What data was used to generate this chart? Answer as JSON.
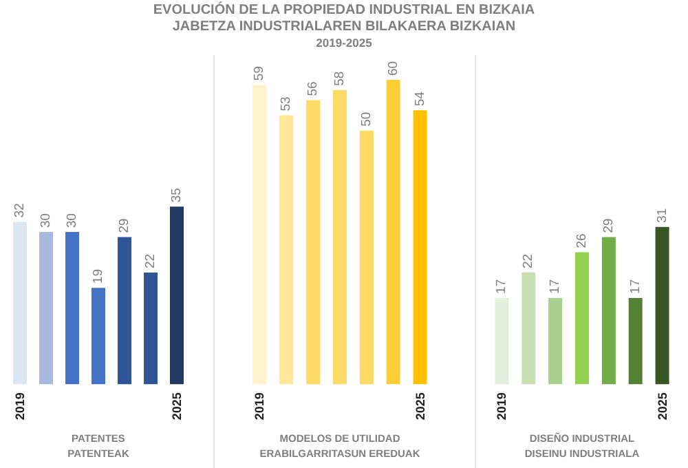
{
  "chart_data": [
    {
      "type": "bar",
      "xlabel": "PATENTES\nPATENTEAK",
      "categories": [
        "2019",
        null,
        null,
        null,
        null,
        null,
        "2025"
      ],
      "values": [
        32,
        30,
        30,
        19,
        29,
        22,
        35
      ],
      "colors": [
        "#dce6f2",
        "#a9b9de",
        "#4472c4",
        "#4472c4",
        "#2f5597",
        "#2f5597",
        "#1f3864"
      ],
      "data_labels": true
    },
    {
      "type": "bar",
      "title": "EVOLUCIÓN DE LA PROPIEDAD INDUSTRIAL EN BIZKAIA",
      "subtitle": "JABETZA INDUSTRIALAREN BILAKAERA BIZKAIAN",
      "annotations": [
        "2019-2025"
      ],
      "xlabel": "MODELOS DE UTILIDAD\nERABILGARRITASUN EREDUAK",
      "categories": [
        "2019",
        null,
        null,
        null,
        null,
        null,
        "2025"
      ],
      "values": [
        59,
        53,
        56,
        58,
        50,
        60,
        54
      ],
      "colors": [
        "#fff2cc",
        "#ffe699",
        "#ffd966",
        "#ffd966",
        "#ffd966",
        "#ffcd38",
        "#ffc000"
      ],
      "data_labels": true
    },
    {
      "type": "bar",
      "xlabel": "DISEÑO INDUSTRIAL\nDISEINU INDUSTRIALA",
      "categories": [
        "2019",
        null,
        null,
        null,
        null,
        null,
        "2025"
      ],
      "values": [
        17,
        22,
        17,
        26,
        29,
        17,
        31
      ],
      "colors": [
        "#e2efda",
        "#c6e0b4",
        "#a9d08e",
        "#92d050",
        "#70ad47",
        "#548235",
        "#375623"
      ],
      "data_labels": true
    }
  ]
}
